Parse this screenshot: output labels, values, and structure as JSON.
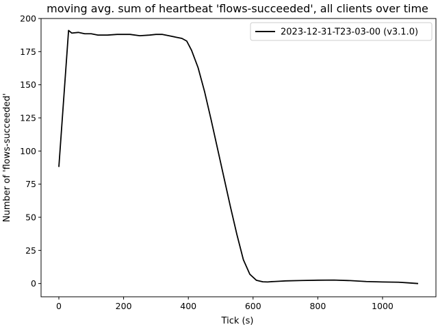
{
  "chart_data": {
    "type": "line",
    "title": "moving avg. sum of heartbeat 'flows-succeeded', all clients over time",
    "xlabel": "Tick (s)",
    "ylabel": "Number of 'flows-succeeded'",
    "xlim": [
      -55,
      1165
    ],
    "ylim": [
      -10,
      200
    ],
    "xticks": [
      0,
      200,
      400,
      600,
      800,
      1000
    ],
    "yticks": [
      0,
      25,
      50,
      75,
      100,
      125,
      150,
      175,
      200
    ],
    "grid": false,
    "legend_position": "top-right",
    "series": [
      {
        "name": "2023-12-31-T23-03-00 (v3.1.0)",
        "color": "#000000",
        "x": [
          0,
          30,
          40,
          60,
          80,
          100,
          120,
          150,
          180,
          200,
          220,
          250,
          280,
          300,
          320,
          340,
          360,
          380,
          395,
          410,
          430,
          450,
          470,
          490,
          510,
          530,
          550,
          570,
          590,
          610,
          630,
          645,
          655,
          665,
          680,
          700,
          750,
          800,
          850,
          900,
          950,
          1000,
          1050,
          1080,
          1110
        ],
        "y": [
          88,
          191,
          189,
          189.5,
          188.5,
          188.5,
          187.5,
          187.5,
          188,
          188,
          188,
          187,
          187.5,
          188,
          188,
          187,
          186,
          185,
          183,
          176,
          163,
          145,
          124,
          102,
          80,
          58,
          37,
          18,
          7,
          2.5,
          1.3,
          1.2,
          1.4,
          1.5,
          1.7,
          2,
          2.3,
          2.5,
          2.6,
          2.2,
          1.5,
          1.2,
          1,
          0.5,
          0
        ]
      }
    ]
  }
}
